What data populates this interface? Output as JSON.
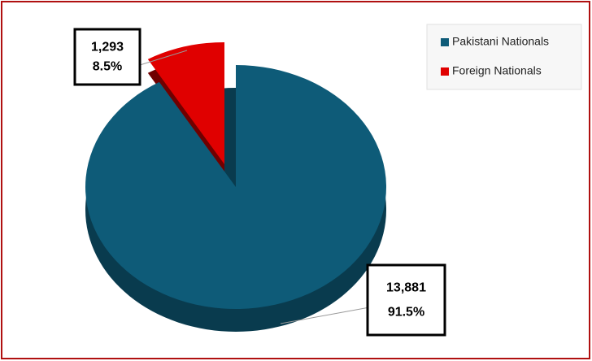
{
  "chart_data": {
    "type": "pie",
    "categories": [
      "Pakistani Nationals",
      "Foreign Nationals"
    ],
    "values": [
      13881,
      1293
    ],
    "value_labels": [
      "13,881",
      "1,293"
    ],
    "percentages": [
      91.5,
      8.5
    ],
    "percentage_labels": [
      "91.5%",
      "8.5%"
    ],
    "colors": [
      "#0e5b78",
      "#e00000"
    ],
    "legend": "top-right"
  }
}
